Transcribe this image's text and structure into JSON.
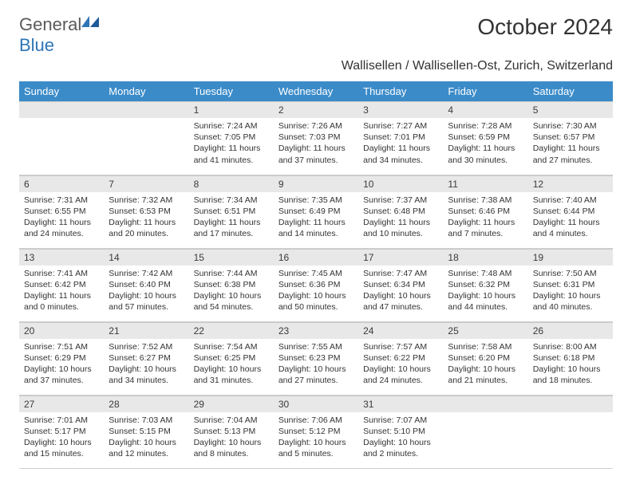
{
  "brand": {
    "word1": "General",
    "word2": "Blue"
  },
  "title": "October 2024",
  "location": "Wallisellen / Wallisellen-Ost, Zurich, Switzerland",
  "colors": {
    "header_bg": "#3b8bc9",
    "header_fg": "#ffffff",
    "daynum_bg": "#e8e8e8",
    "brand_gray": "#5a5a5a",
    "brand_blue": "#2e75b6",
    "text": "#333333"
  },
  "dayHeaders": [
    "Sunday",
    "Monday",
    "Tuesday",
    "Wednesday",
    "Thursday",
    "Friday",
    "Saturday"
  ],
  "weeks": [
    [
      null,
      null,
      {
        "n": "1",
        "sr": "7:24 AM",
        "ss": "7:05 PM",
        "dl": "11 hours and 41 minutes."
      },
      {
        "n": "2",
        "sr": "7:26 AM",
        "ss": "7:03 PM",
        "dl": "11 hours and 37 minutes."
      },
      {
        "n": "3",
        "sr": "7:27 AM",
        "ss": "7:01 PM",
        "dl": "11 hours and 34 minutes."
      },
      {
        "n": "4",
        "sr": "7:28 AM",
        "ss": "6:59 PM",
        "dl": "11 hours and 30 minutes."
      },
      {
        "n": "5",
        "sr": "7:30 AM",
        "ss": "6:57 PM",
        "dl": "11 hours and 27 minutes."
      }
    ],
    [
      {
        "n": "6",
        "sr": "7:31 AM",
        "ss": "6:55 PM",
        "dl": "11 hours and 24 minutes."
      },
      {
        "n": "7",
        "sr": "7:32 AM",
        "ss": "6:53 PM",
        "dl": "11 hours and 20 minutes."
      },
      {
        "n": "8",
        "sr": "7:34 AM",
        "ss": "6:51 PM",
        "dl": "11 hours and 17 minutes."
      },
      {
        "n": "9",
        "sr": "7:35 AM",
        "ss": "6:49 PM",
        "dl": "11 hours and 14 minutes."
      },
      {
        "n": "10",
        "sr": "7:37 AM",
        "ss": "6:48 PM",
        "dl": "11 hours and 10 minutes."
      },
      {
        "n": "11",
        "sr": "7:38 AM",
        "ss": "6:46 PM",
        "dl": "11 hours and 7 minutes."
      },
      {
        "n": "12",
        "sr": "7:40 AM",
        "ss": "6:44 PM",
        "dl": "11 hours and 4 minutes."
      }
    ],
    [
      {
        "n": "13",
        "sr": "7:41 AM",
        "ss": "6:42 PM",
        "dl": "11 hours and 0 minutes."
      },
      {
        "n": "14",
        "sr": "7:42 AM",
        "ss": "6:40 PM",
        "dl": "10 hours and 57 minutes."
      },
      {
        "n": "15",
        "sr": "7:44 AM",
        "ss": "6:38 PM",
        "dl": "10 hours and 54 minutes."
      },
      {
        "n": "16",
        "sr": "7:45 AM",
        "ss": "6:36 PM",
        "dl": "10 hours and 50 minutes."
      },
      {
        "n": "17",
        "sr": "7:47 AM",
        "ss": "6:34 PM",
        "dl": "10 hours and 47 minutes."
      },
      {
        "n": "18",
        "sr": "7:48 AM",
        "ss": "6:32 PM",
        "dl": "10 hours and 44 minutes."
      },
      {
        "n": "19",
        "sr": "7:50 AM",
        "ss": "6:31 PM",
        "dl": "10 hours and 40 minutes."
      }
    ],
    [
      {
        "n": "20",
        "sr": "7:51 AM",
        "ss": "6:29 PM",
        "dl": "10 hours and 37 minutes."
      },
      {
        "n": "21",
        "sr": "7:52 AM",
        "ss": "6:27 PM",
        "dl": "10 hours and 34 minutes."
      },
      {
        "n": "22",
        "sr": "7:54 AM",
        "ss": "6:25 PM",
        "dl": "10 hours and 31 minutes."
      },
      {
        "n": "23",
        "sr": "7:55 AM",
        "ss": "6:23 PM",
        "dl": "10 hours and 27 minutes."
      },
      {
        "n": "24",
        "sr": "7:57 AM",
        "ss": "6:22 PM",
        "dl": "10 hours and 24 minutes."
      },
      {
        "n": "25",
        "sr": "7:58 AM",
        "ss": "6:20 PM",
        "dl": "10 hours and 21 minutes."
      },
      {
        "n": "26",
        "sr": "8:00 AM",
        "ss": "6:18 PM",
        "dl": "10 hours and 18 minutes."
      }
    ],
    [
      {
        "n": "27",
        "sr": "7:01 AM",
        "ss": "5:17 PM",
        "dl": "10 hours and 15 minutes."
      },
      {
        "n": "28",
        "sr": "7:03 AM",
        "ss": "5:15 PM",
        "dl": "10 hours and 12 minutes."
      },
      {
        "n": "29",
        "sr": "7:04 AM",
        "ss": "5:13 PM",
        "dl": "10 hours and 8 minutes."
      },
      {
        "n": "30",
        "sr": "7:06 AM",
        "ss": "5:12 PM",
        "dl": "10 hours and 5 minutes."
      },
      {
        "n": "31",
        "sr": "7:07 AM",
        "ss": "5:10 PM",
        "dl": "10 hours and 2 minutes."
      },
      null,
      null
    ]
  ],
  "labels": {
    "sunrise": "Sunrise:",
    "sunset": "Sunset:",
    "daylight": "Daylight:"
  }
}
